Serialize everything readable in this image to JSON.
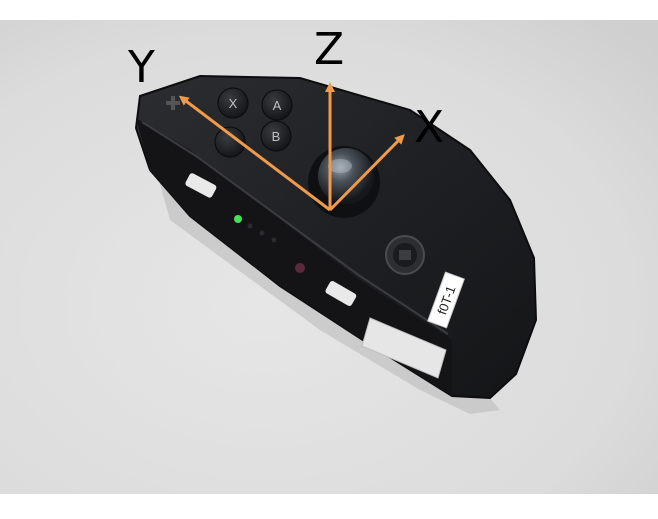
{
  "axes": {
    "x_label": "X",
    "y_label": "Y",
    "z_label": "Z",
    "arrow_color": "#f09a4a"
  },
  "controller": {
    "buttons": [
      "X",
      "A",
      "B"
    ],
    "sticker_text": "f0T-1",
    "body_color": "#1f2023",
    "led_color": "#46e05a"
  },
  "icons": [
    "plus-icon",
    "home-icon",
    "analog-stick-icon"
  ]
}
